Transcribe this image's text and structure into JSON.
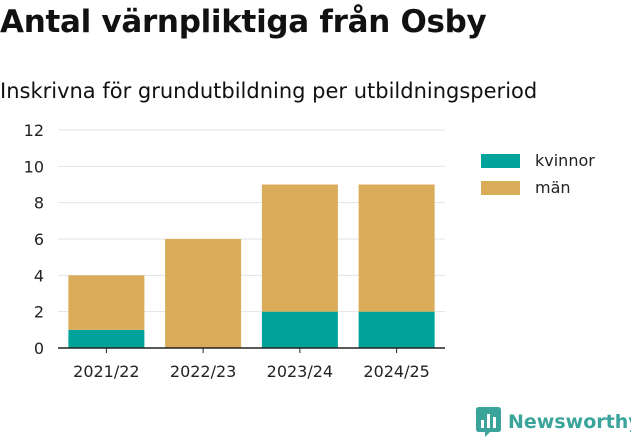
{
  "title": "Antal värnpliktiga från Osby",
  "subtitle": "Inskrivna för grundutbildning per utbildningsperiod",
  "chart_data": {
    "type": "bar",
    "stacked": true,
    "categories": [
      "2021/22",
      "2022/23",
      "2023/24",
      "2024/25"
    ],
    "series": [
      {
        "name": "kvinnor",
        "color": "#00a39a",
        "values": [
          1,
          0,
          2,
          2
        ]
      },
      {
        "name": "män",
        "color": "#d8ac59",
        "values": [
          3,
          6,
          7,
          7
        ]
      }
    ],
    "ylim": [
      0,
      12
    ],
    "yticks": [
      "0",
      "2",
      "4",
      "6",
      "8",
      "10",
      "12"
    ],
    "grid": true,
    "legend": "right"
  },
  "brand": {
    "name": "Newsworthy",
    "icon": "newsworthy-logo-icon",
    "color": "#3aa39a"
  }
}
